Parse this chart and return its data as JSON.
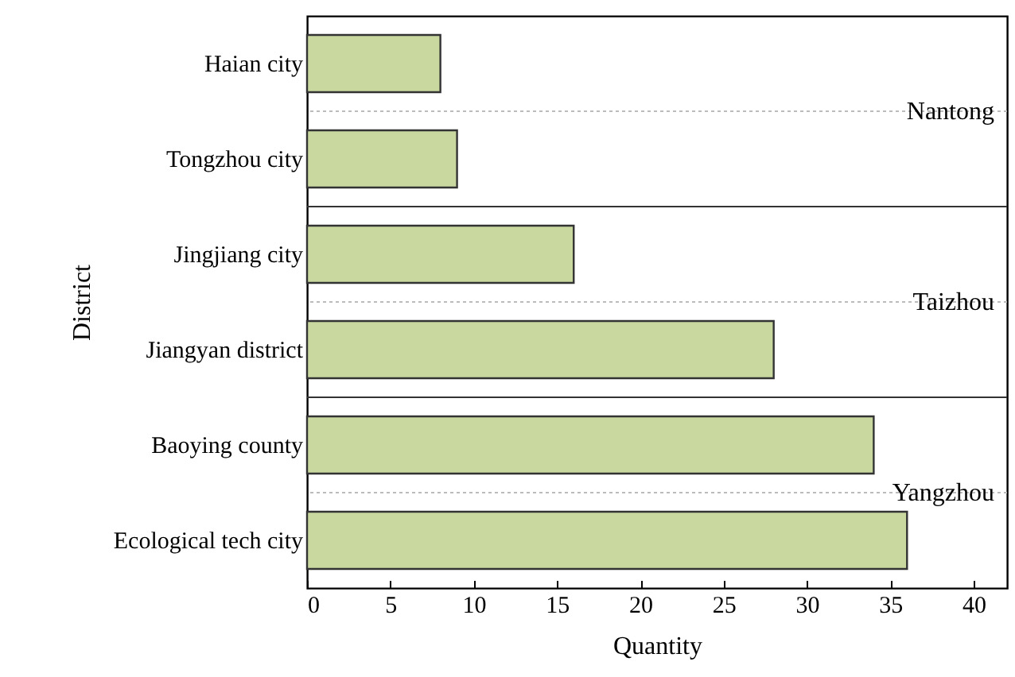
{
  "chart_data": {
    "type": "bar",
    "orientation": "horizontal",
    "xlabel": "Quantity",
    "ylabel": "District",
    "categories": [
      "Haian city",
      "Tongzhou city",
      "Jingjiang city",
      "Jiangyan district",
      "Baoying county",
      "Ecological tech city"
    ],
    "values": [
      8,
      9,
      16,
      28,
      34,
      36
    ],
    "color": "#c8d89f",
    "xlim": [
      0,
      42
    ],
    "xticks": [
      0,
      5,
      10,
      15,
      20,
      25,
      30,
      35,
      40
    ],
    "grid": false,
    "annotations": [
      "Nantong",
      "Taizhou",
      "Yangzhou"
    ]
  }
}
